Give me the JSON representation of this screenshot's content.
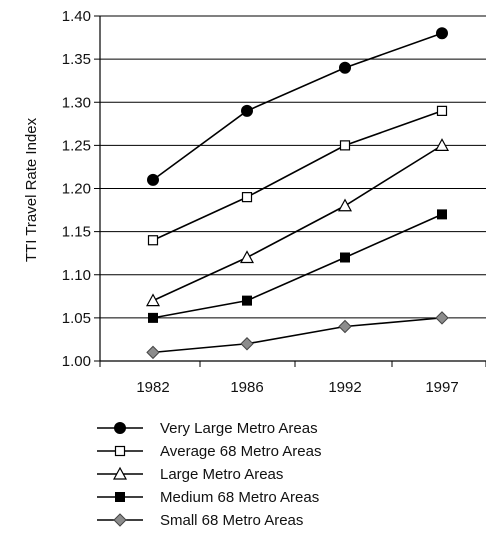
{
  "chart_data": {
    "type": "line",
    "title": "",
    "xlabel": "",
    "ylabel": "TTI Travel Rate Index",
    "categories": [
      "1982",
      "1986",
      "1992",
      "1997"
    ],
    "ylim": [
      1.0,
      1.4
    ],
    "yticks": [
      "1.00",
      "1.05",
      "1.10",
      "1.15",
      "1.20",
      "1.25",
      "1.30",
      "1.35",
      "1.40"
    ],
    "grid": "none",
    "legend_placement": "bottom",
    "series": [
      {
        "name": "Very Large Metro Areas",
        "marker": "circle-filled",
        "values": [
          1.21,
          1.29,
          1.34,
          1.38
        ]
      },
      {
        "name": "Average 68 Metro Areas",
        "marker": "square-open",
        "values": [
          1.14,
          1.19,
          1.25,
          1.29
        ]
      },
      {
        "name": "Large Metro Areas",
        "marker": "triangle-open",
        "values": [
          1.07,
          1.12,
          1.18,
          1.25
        ]
      },
      {
        "name": "Medium 68 Metro Areas",
        "marker": "square-filled",
        "values": [
          1.05,
          1.07,
          1.12,
          1.17
        ]
      },
      {
        "name": "Small 68 Metro Areas",
        "marker": "diamond-gray",
        "values": [
          1.01,
          1.02,
          1.04,
          1.05
        ]
      }
    ]
  }
}
